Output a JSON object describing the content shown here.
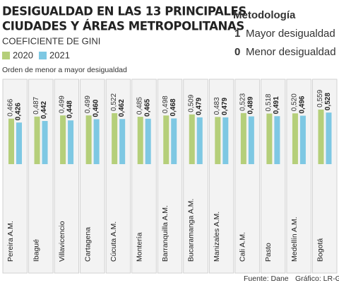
{
  "chart_data": {
    "type": "bar",
    "title": [
      "DESIGUALDAD EN LAS 13 PRINCIPALES",
      "CIUDADES Y ÁREAS METROPOLITANAS"
    ],
    "subtitle": "COEFICIENTE DE GINI",
    "note": "Orden de menor a mayor desigualdad",
    "categories": [
      "Pereira A.M.",
      "Ibagué",
      "Villavicencio",
      "Cartagena",
      "Cúcuta A.M.",
      "Montería",
      "Barranquilla A.M.",
      "Bucaramanga A.M.",
      "Manizales A.M.",
      "Cali A.M.",
      "Pasto",
      "Medellín A.M.",
      "Bogotá"
    ],
    "series": [
      {
        "name": "2020",
        "color": "#b5cf7a",
        "values": [
          0.466,
          0.487,
          0.499,
          0.499,
          0.522,
          0.485,
          0.498,
          0.509,
          0.483,
          0.523,
          0.518,
          0.52,
          0.559
        ],
        "value_labels": [
          "0,466",
          "0,487",
          "0,499",
          "0,499",
          "0,522",
          "0,485",
          "0,498",
          "0,509",
          "0,483",
          "0,523",
          "0,518",
          "0,520",
          "0,559"
        ]
      },
      {
        "name": "2021",
        "color": "#7ec8e3",
        "values": [
          0.426,
          0.442,
          0.448,
          0.46,
          0.462,
          0.465,
          0.468,
          0.479,
          0.479,
          0.489,
          0.491,
          0.496,
          0.528
        ],
        "value_labels": [
          "0,426",
          "0,442",
          "0,448",
          "0,460",
          "0,462",
          "0,465",
          "0,468",
          "0,479",
          "0,479",
          "0,489",
          "0,491",
          "0,496",
          "0,528"
        ]
      }
    ]
  },
  "methodology": {
    "title": "Metodología",
    "items": [
      {
        "key": "1",
        "label": "Mayor desigualdad"
      },
      {
        "key": "0",
        "label": "Menor desigualdad"
      }
    ]
  },
  "source": "Fuente: Dane",
  "credit": "Gráfico: LR-GR"
}
